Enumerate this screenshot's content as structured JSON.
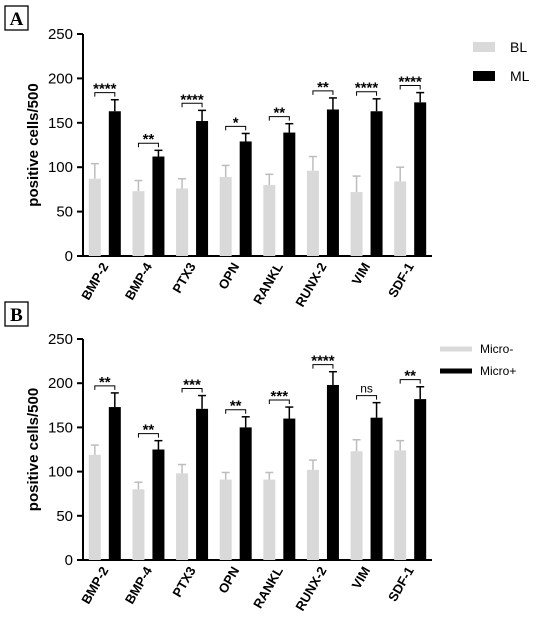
{
  "chart_data": [
    {
      "panel_label": "A",
      "type": "bar",
      "categories": [
        "BMP-2",
        "BMP-4",
        "PTX3",
        "OPN",
        "RANKL",
        "RUNX-2",
        "VIM",
        "SDF-1"
      ],
      "series": [
        {
          "name": "BL",
          "color": "#d9d9d9",
          "values": [
            87,
            73,
            76,
            89,
            80,
            96,
            72,
            84
          ],
          "errors": [
            17,
            12,
            11,
            13,
            12,
            16,
            18,
            16
          ]
        },
        {
          "name": "ML",
          "color": "#000000",
          "values": [
            163,
            112,
            152,
            129,
            139,
            165,
            163,
            173
          ],
          "errors": [
            13,
            7,
            12,
            9,
            10,
            13,
            14,
            11
          ]
        }
      ],
      "significance": [
        "****",
        "**",
        "****",
        "*",
        "**",
        "**",
        "****",
        "****"
      ],
      "ylabel": "positive cells/500",
      "ylim": [
        0,
        250
      ],
      "yticks": [
        0,
        50,
        100,
        150,
        200,
        250
      ],
      "legend_position": "right"
    },
    {
      "panel_label": "B",
      "type": "bar",
      "categories": [
        "BMP-2",
        "BMP-4",
        "PTX3",
        "OPN",
        "RANKL",
        "RUNX-2",
        "VIM",
        "SDF-1"
      ],
      "series": [
        {
          "name": "Micro-",
          "color": "#d9d9d9",
          "values": [
            119,
            80,
            98,
            91,
            91,
            102,
            123,
            124
          ],
          "errors": [
            11,
            8,
            10,
            8,
            8,
            11,
            13,
            11
          ]
        },
        {
          "name": "Micro+",
          "color": "#000000",
          "values": [
            173,
            125,
            171,
            150,
            160,
            198,
            161,
            182
          ],
          "errors": [
            16,
            10,
            15,
            12,
            13,
            15,
            17,
            14
          ]
        }
      ],
      "significance": [
        "**",
        "**",
        "***",
        "**",
        "***",
        "****",
        "ns",
        "**"
      ],
      "ylabel": "positive cells/500",
      "ylim": [
        0,
        250
      ],
      "yticks": [
        0,
        50,
        100,
        150,
        200,
        250
      ],
      "legend_position": "right"
    }
  ]
}
